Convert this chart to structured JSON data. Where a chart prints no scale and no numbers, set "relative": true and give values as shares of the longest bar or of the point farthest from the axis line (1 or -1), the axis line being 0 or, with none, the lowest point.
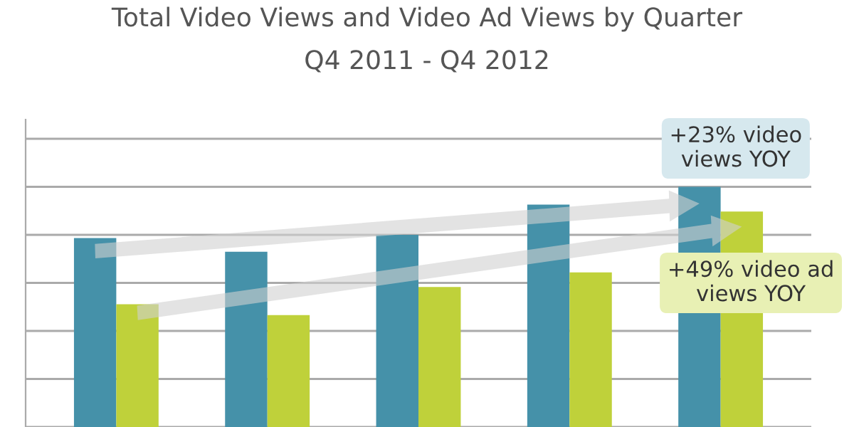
{
  "chart_data": {
    "type": "bar",
    "title": "Total Video Views and Video Ad Views by Quarter",
    "subtitle": "Q4 2011 - Q4 2012",
    "categories": [
      null,
      null,
      null,
      null,
      null
    ],
    "series": [
      {
        "color": "#4591a9",
        "values": [
          0.787,
          0.73,
          0.8,
          0.926,
          1
        ]
      },
      {
        "color": "#bfd13a",
        "values": [
          0.511,
          0.466,
          0.583,
          0.644,
          0.897
        ]
      }
    ],
    "relative": true,
    "grid": "y",
    "annotations": [
      "+23% video views YOY",
      "+49% video ad views YOY"
    ]
  }
}
